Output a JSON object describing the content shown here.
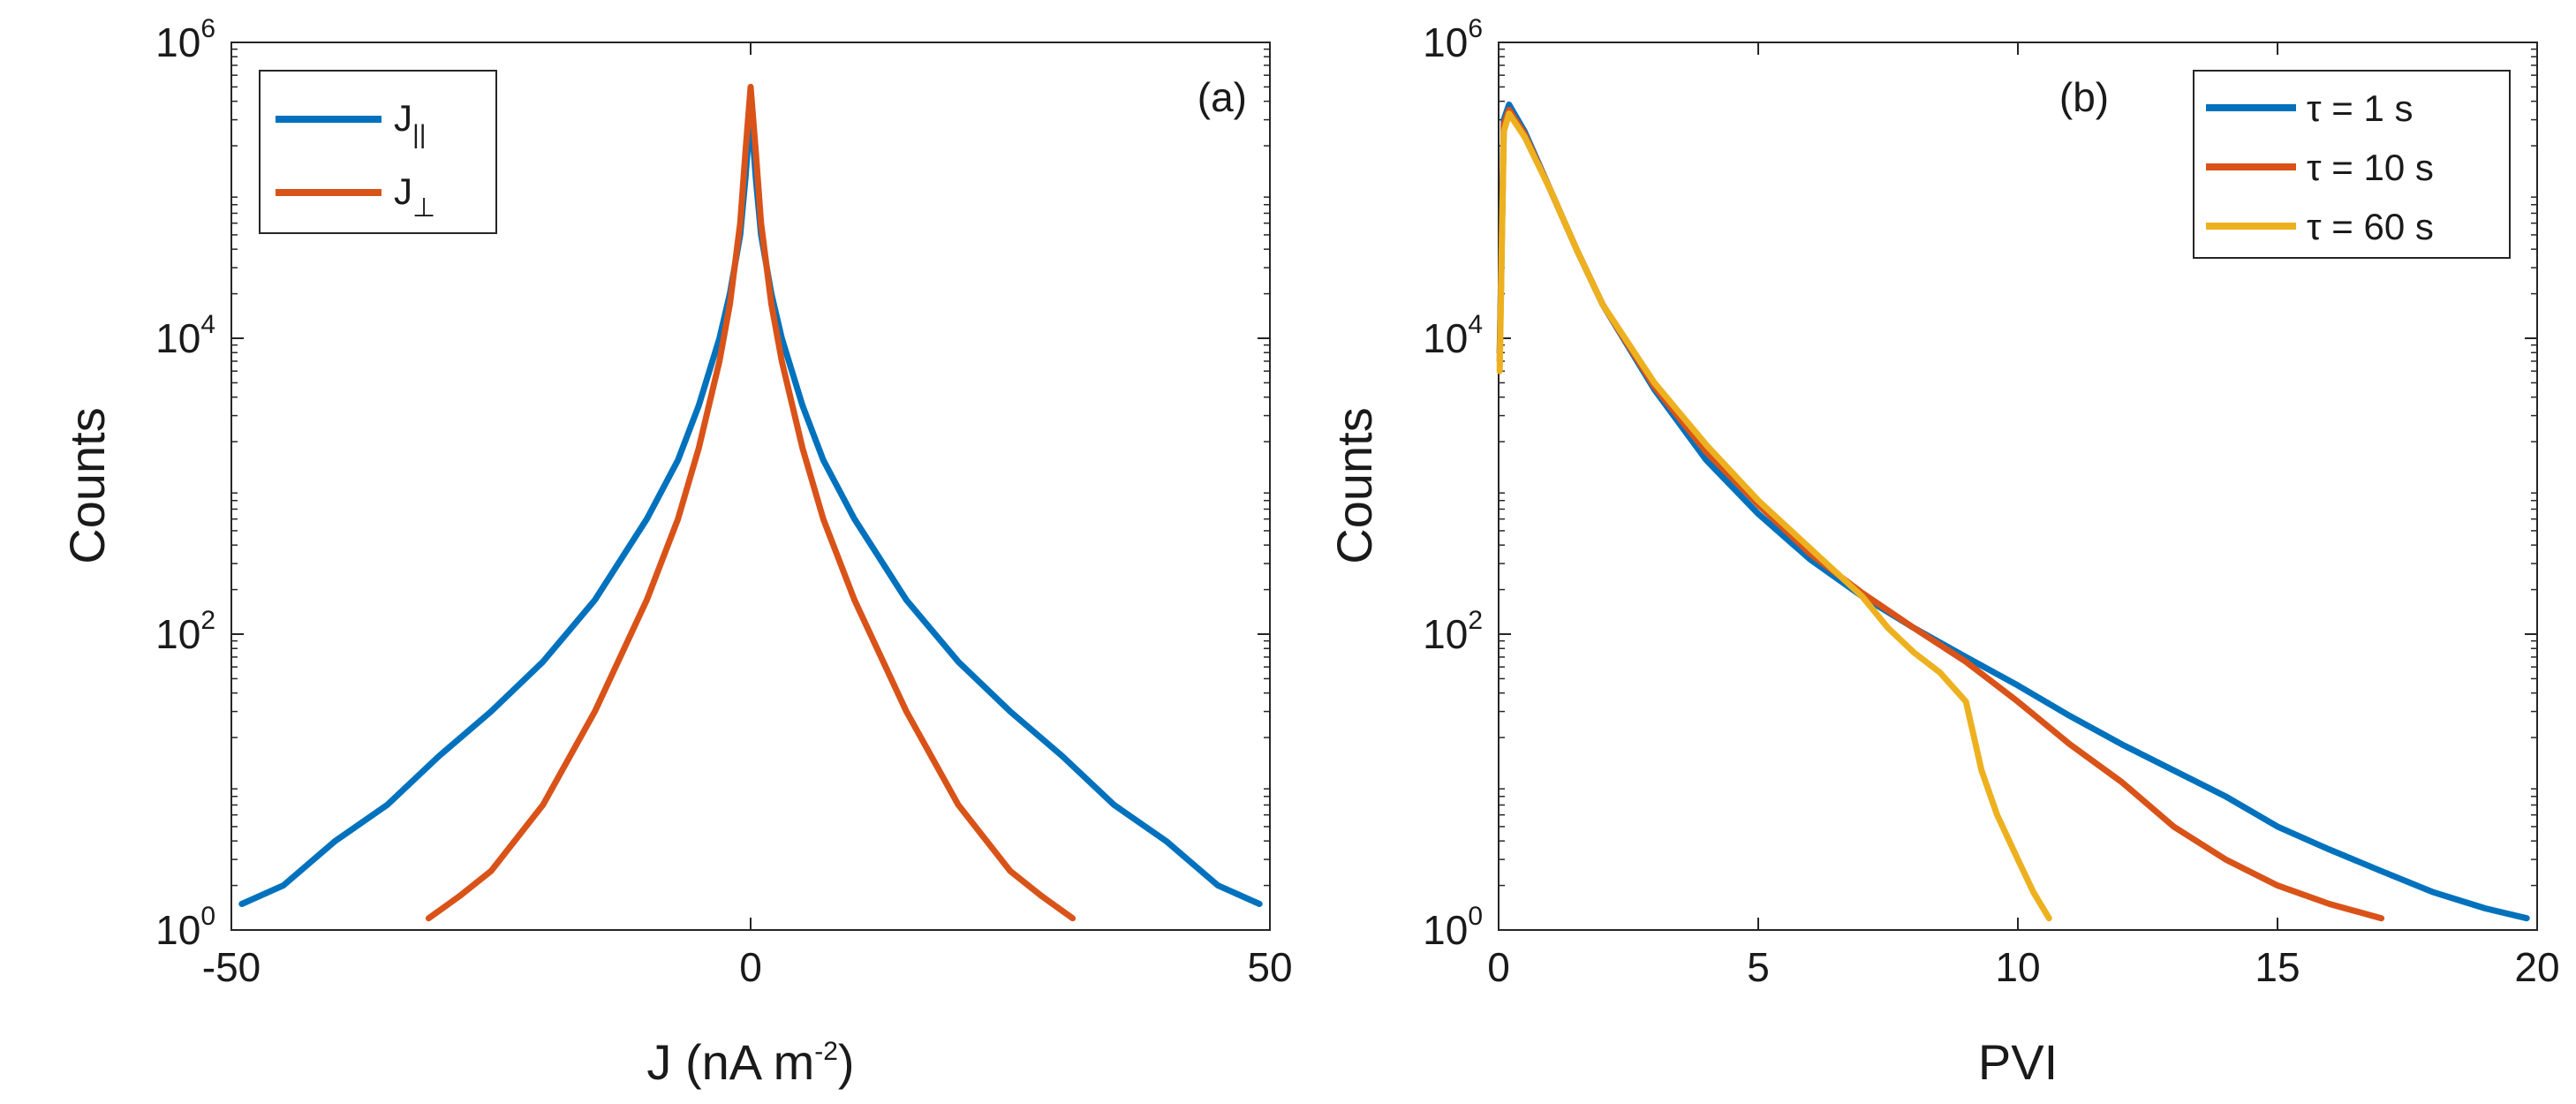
{
  "chart_data": [
    {
      "type": "line",
      "panel_label": "(a)",
      "xlabel": "J (nA m",
      "xlabel_sup": "-2",
      "xlabel_end": ")",
      "ylabel": "Counts",
      "xlim": [
        -50,
        50
      ],
      "ylim": [
        1,
        1000000
      ],
      "yscale": "log",
      "xticks": [
        -50,
        0,
        50
      ],
      "xtick_labels": [
        "-50",
        "0",
        "50"
      ],
      "yticks": [
        1,
        100,
        10000,
        1000000
      ],
      "ytick_base": "10",
      "ytick_exps": [
        "0",
        "2",
        "4",
        "6"
      ],
      "legend_position": "top-left",
      "series": [
        {
          "name": "J",
          "name_sub": "||",
          "color": "#0072BD",
          "x": [
            -49,
            -45,
            -40,
            -35,
            -30,
            -25,
            -20,
            -15,
            -10,
            -7,
            -5,
            -3,
            -2,
            -1,
            -0.5,
            0,
            0.5,
            1,
            2,
            3,
            5,
            7,
            10,
            15,
            20,
            25,
            30,
            35,
            40,
            45,
            49
          ],
          "y": [
            1.5,
            2,
            4,
            7,
            15,
            30,
            65,
            170,
            600,
            1500,
            3500,
            10000,
            20000,
            50000,
            120000,
            350000,
            120000,
            50000,
            20000,
            10000,
            3500,
            1500,
            600,
            170,
            65,
            30,
            15,
            7,
            4,
            2,
            1.5
          ]
        },
        {
          "name": "J",
          "name_sub": "⊥",
          "color": "#D95319",
          "x": [
            -31,
            -28,
            -25,
            -20,
            -15,
            -10,
            -7,
            -5,
            -3,
            -2,
            -1,
            -0.5,
            0,
            0.5,
            1,
            2,
            3,
            5,
            7,
            10,
            15,
            20,
            25,
            28,
            31
          ],
          "y": [
            1.2,
            1.7,
            2.5,
            7,
            30,
            170,
            600,
            1800,
            7000,
            17000,
            60000,
            180000,
            500000,
            180000,
            60000,
            17000,
            7000,
            1800,
            600,
            170,
            30,
            7,
            2.5,
            1.7,
            1.2
          ]
        }
      ]
    },
    {
      "type": "line",
      "panel_label": "(b)",
      "xlabel": "PVI",
      "ylabel": "Counts",
      "xlim": [
        0,
        20
      ],
      "ylim": [
        1,
        1000000
      ],
      "yscale": "log",
      "xticks": [
        0,
        5,
        10,
        15,
        20
      ],
      "xtick_labels": [
        "0",
        "5",
        "10",
        "15",
        "20"
      ],
      "yticks": [
        1,
        100,
        10000,
        1000000
      ],
      "ytick_base": "10",
      "ytick_exps": [
        "0",
        "2",
        "4",
        "6"
      ],
      "legend_position": "top-right",
      "series": [
        {
          "name": "τ = 1 s",
          "color": "#0072BD",
          "x": [
            0.02,
            0.1,
            0.2,
            0.5,
            1,
            1.5,
            2,
            3,
            4,
            5,
            6,
            7,
            8,
            9,
            10,
            11,
            12,
            13,
            14,
            15,
            16,
            17,
            18,
            19,
            19.8
          ],
          "y": [
            8000,
            300000,
            380000,
            250000,
            100000,
            40000,
            17000,
            4500,
            1500,
            650,
            320,
            180,
            110,
            70,
            45,
            28,
            18,
            12,
            8,
            5,
            3.5,
            2.5,
            1.8,
            1.4,
            1.2
          ]
        },
        {
          "name": "τ = 10 s",
          "color": "#D95319",
          "x": [
            0.02,
            0.1,
            0.2,
            0.5,
            1,
            1.5,
            2,
            3,
            4,
            5,
            6,
            7,
            8,
            9,
            10,
            11,
            12,
            13,
            14,
            15,
            16,
            17
          ],
          "y": [
            7000,
            280000,
            350000,
            240000,
            100000,
            40000,
            17000,
            4700,
            1700,
            750,
            350,
            190,
            110,
            65,
            35,
            18,
            10,
            5,
            3,
            2,
            1.5,
            1.2
          ]
        },
        {
          "name": "τ = 60 s",
          "color": "#EDB120",
          "x": [
            0.02,
            0.1,
            0.2,
            0.5,
            1,
            1.5,
            2,
            3,
            4,
            5,
            6,
            7,
            7.5,
            8,
            8.5,
            9,
            9.3,
            9.6,
            10,
            10.3,
            10.6
          ],
          "y": [
            6000,
            250000,
            330000,
            230000,
            100000,
            40000,
            17000,
            5000,
            1900,
            800,
            380,
            180,
            110,
            75,
            55,
            35,
            12,
            6,
            3,
            1.8,
            1.2
          ]
        }
      ]
    }
  ]
}
